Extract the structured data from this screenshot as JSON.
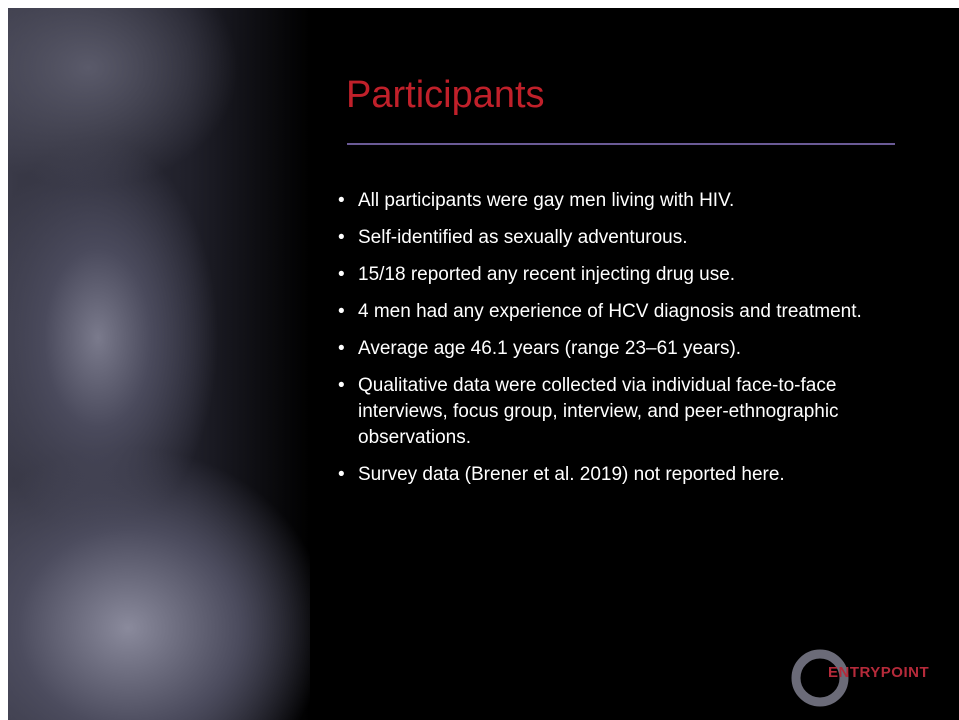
{
  "slide": {
    "title": "Participants",
    "bullets": [
      "All participants were gay men living with HIV.",
      "Self-identified as sexually adventurous.",
      "15/18 reported any recent injecting drug use.",
      "4 men had any experience of HCV diagnosis and treatment.",
      "Average age 46.1 years (range 23–61 years).",
      "Qualitative data were collected via individual face-to-face interviews, focus group,  interview, and peer-ethnographic observations.",
      "Survey data (Brener et al. 2019) not reported here."
    ],
    "logo": "ENTRYPOINT"
  }
}
